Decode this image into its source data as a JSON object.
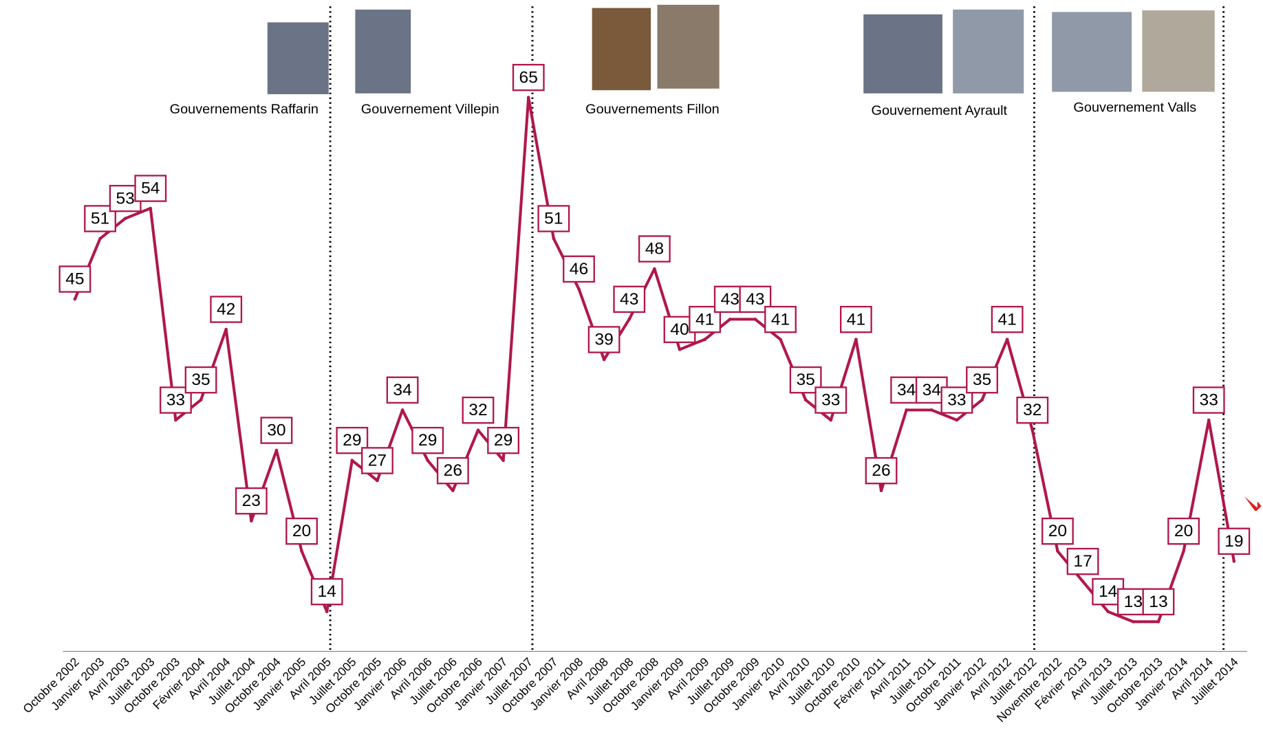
{
  "chart_data": {
    "type": "line",
    "categories": [
      "Octobre 2002",
      "Janvier 2003",
      "Avril 2003",
      "Juillet 2003",
      "Octobre 2003",
      "Février 2004",
      "Avril 2004",
      "Juillet 2004",
      "Octobre 2004",
      "Janvier 2005",
      "Avril 2005",
      "Juillet 2005",
      "Octobre 2005",
      "Janvier 2006",
      "Avril 2006",
      "Juillet 2006",
      "Octobre 2006",
      "Janvier 2007",
      "Juillet 2007",
      "Octobre 2007",
      "Janvier 2008",
      "Avril 2008",
      "Juillet 2008",
      "Octobre 2008",
      "Janvier 2009",
      "Avril 2009",
      "Juillet 2009",
      "Octobre 2009",
      "Janvier 2010",
      "Avril 2010",
      "Juillet 2010",
      "Octobre 2010",
      "Février 2011",
      "Avril 2011",
      "Juillet 2011",
      "Octobre 2011",
      "Janvier 2012",
      "Avril 2012",
      "Juillet 2012",
      "Novembre 2012",
      "Février 2013",
      "Avril 2013",
      "Juillet 2013",
      "Octobre 2013",
      "Janvier 2014",
      "Avril 2014",
      "Juillet 2014"
    ],
    "values": [
      45,
      51,
      53,
      54,
      33,
      35,
      42,
      23,
      30,
      20,
      14,
      29,
      27,
      34,
      29,
      26,
      32,
      29,
      65,
      51,
      46,
      39,
      43,
      48,
      40,
      41,
      43,
      43,
      41,
      35,
      33,
      41,
      26,
      34,
      34,
      33,
      35,
      41,
      32,
      20,
      17,
      14,
      13,
      13,
      20,
      33,
      19
    ],
    "color": "#b0174a",
    "annotations": [
      "Gouvernements Raffarin",
      "Gouvernement Villepin",
      "Gouvernements Fillon",
      "Gouvernement Ayrault",
      "Gouvernement Valls"
    ]
  }
}
